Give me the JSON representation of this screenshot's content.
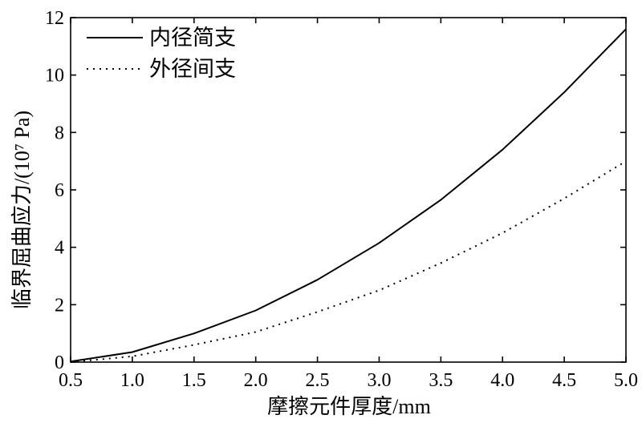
{
  "chart_data": {
    "type": "line",
    "title": "",
    "xlabel": "摩擦元件厚度/mm",
    "ylabel": "临界屈曲应力/(10⁷ Pa)",
    "xlim": [
      0.5,
      5.0
    ],
    "ylim": [
      0,
      12
    ],
    "x_ticks": [
      "0.5",
      "1.0",
      "1.5",
      "2.0",
      "2.5",
      "3.0",
      "3.5",
      "4.0",
      "4.5",
      "5.0"
    ],
    "y_ticks": [
      "0",
      "2",
      "4",
      "6",
      "8",
      "10",
      "12"
    ],
    "grid": false,
    "legend_position": "top-left",
    "series": [
      {
        "name": "内径简支",
        "line_style": "solid",
        "color": "#000000",
        "x": [
          0.5,
          1.0,
          1.5,
          2.0,
          2.5,
          3.0,
          3.5,
          4.0,
          4.5,
          5.0
        ],
        "values": [
          0.02,
          0.35,
          1.0,
          1.8,
          2.87,
          4.15,
          5.65,
          7.4,
          9.4,
          11.6
        ]
      },
      {
        "name": "外径间支",
        "line_style": "dotted",
        "color": "#000000",
        "x": [
          0.5,
          1.0,
          1.5,
          2.0,
          2.5,
          3.0,
          3.5,
          4.0,
          4.5,
          5.0
        ],
        "values": [
          0.0,
          0.2,
          0.6,
          1.05,
          1.75,
          2.5,
          3.45,
          4.5,
          5.7,
          7.0
        ]
      }
    ]
  }
}
